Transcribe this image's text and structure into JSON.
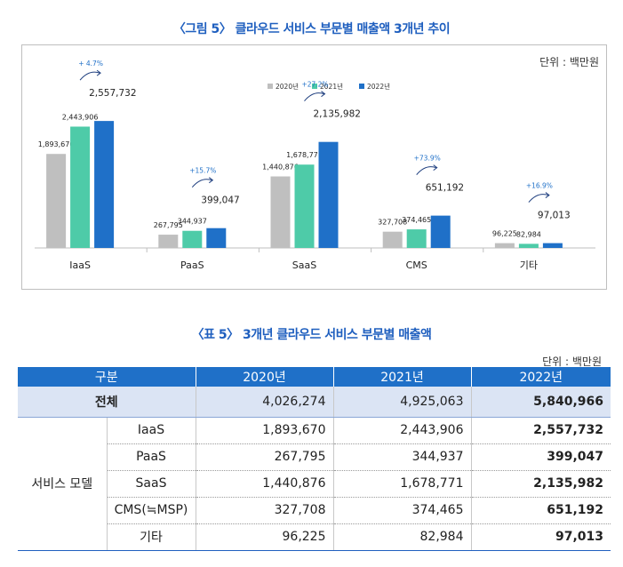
{
  "figure": {
    "title": "〈그림 5〉 클라우드 서비스 부문별 매출액 3개년 추이",
    "unit": "단위 : 백만원"
  },
  "chart_data": {
    "type": "bar",
    "categories": [
      "IaaS",
      "PaaS",
      "SaaS",
      "CMS",
      "기타"
    ],
    "series": [
      {
        "name": "2020년",
        "color": "#bfbfbf",
        "values": [
          1893670,
          267795,
          1440876,
          327708,
          96225
        ],
        "labels": [
          "1,893,670",
          "267,795",
          "1,440,876",
          "327,708",
          "96,225"
        ]
      },
      {
        "name": "2021년",
        "color": "#4ecba8",
        "values": [
          2443906,
          344937,
          1678771,
          374465,
          82984
        ],
        "labels": [
          "2,443,906",
          "344,937",
          "1,678,771",
          "374,465",
          "82,984"
        ]
      },
      {
        "name": "2022년",
        "color": "#1f70c8",
        "values": [
          2557732,
          399047,
          2135982,
          651192,
          97013
        ],
        "labels": [
          "2,557,732",
          "399,047",
          "2,135,982",
          "651,192",
          "97,013"
        ]
      }
    ],
    "growth": [
      "+ 4.7%",
      "+15.7%",
      "+27.2%",
      "+73.9%",
      "+16.9%"
    ],
    "ylim": [
      0,
      2900000
    ],
    "legend_position": "top-center",
    "grid": false
  },
  "table": {
    "title": "〈표 5〉 3개년 클라우드 서비스 부문별 매출액",
    "unit": "단위 : 백만원",
    "headers": {
      "category": "구분",
      "y2020": "2020년",
      "y2021": "2021년",
      "y2022": "2022년"
    },
    "total": {
      "label": "전체",
      "y2020": "4,026,274",
      "y2021": "4,925,063",
      "y2022": "5,840,966"
    },
    "group_label": "서비스 모델",
    "rows": [
      {
        "label": "IaaS",
        "y2020": "1,893,670",
        "y2021": "2,443,906",
        "y2022": "2,557,732"
      },
      {
        "label": "PaaS",
        "y2020": "267,795",
        "y2021": "344,937",
        "y2022": "399,047"
      },
      {
        "label": "SaaS",
        "y2020": "1,440,876",
        "y2021": "1,678,771",
        "y2022": "2,135,982"
      },
      {
        "label": "CMS(≒MSP)",
        "y2020": "327,708",
        "y2021": "374,465",
        "y2022": "651,192"
      },
      {
        "label": "기타",
        "y2020": "96,225",
        "y2021": "82,984",
        "y2022": "97,013"
      }
    ]
  }
}
